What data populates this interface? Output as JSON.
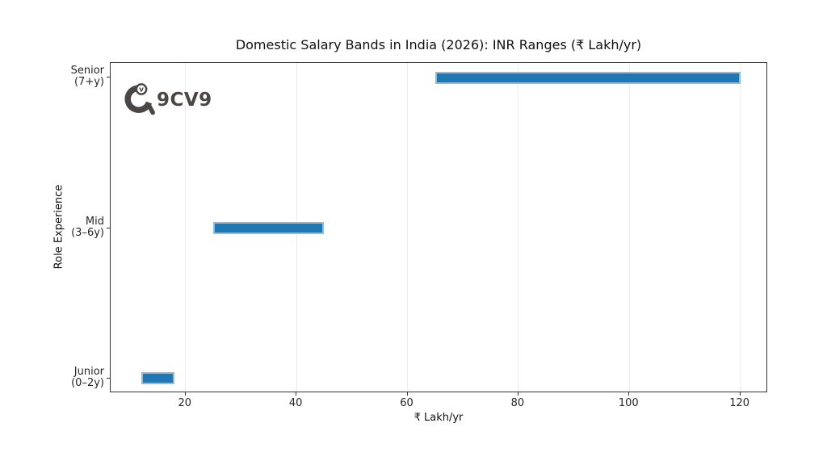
{
  "chart_data": {
    "type": "bar",
    "subtype": "horizontal-range-bars",
    "title": "Domestic Salary Bands in India (2026): INR Ranges (₹ Lakh/yr)",
    "xlabel": "₹ Lakh/yr",
    "ylabel": "Role Experience",
    "categories": [
      "Senior (7+y)",
      "Mid (3–6y)",
      "Junior (0–2y)"
    ],
    "rows": [
      {
        "label_lines": [
          "Senior",
          "(7+y)"
        ],
        "range_min": 65,
        "range_max": 120
      },
      {
        "label_lines": [
          "Mid",
          "(3–6y)"
        ],
        "range_min": 25,
        "range_max": 45
      },
      {
        "label_lines": [
          "Junior",
          "(0–2y)"
        ],
        "range_min": 12,
        "range_max": 18
      }
    ],
    "xticks": [
      20,
      40,
      60,
      80,
      100,
      120
    ],
    "xlim": [
      6.5,
      125
    ],
    "grid": "vertical light gray gridlines at each x tick",
    "legend": "none",
    "bar_color": "#1f77b4",
    "bar_edge_color": "#8fbcdd"
  },
  "logo": {
    "text": "9CV9",
    "badge_letter": "v",
    "color": "#4b4543"
  }
}
